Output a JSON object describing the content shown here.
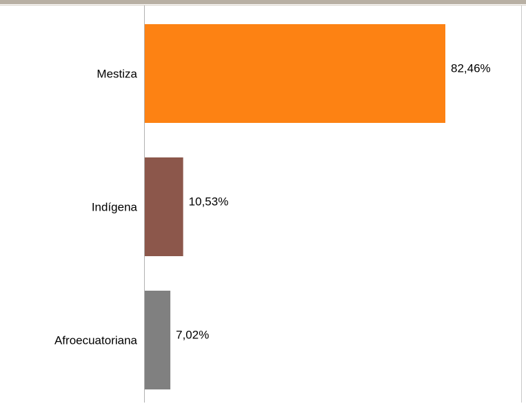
{
  "chart_data": {
    "type": "bar",
    "orientation": "horizontal",
    "title": "",
    "xlabel": "",
    "ylabel": "",
    "categories": [
      "Mestiza",
      "Indígena",
      "Afroecuatoriana"
    ],
    "values": [
      82.46,
      10.53,
      7.02
    ],
    "value_labels": [
      "82,46%",
      "10,53%",
      "7,02%"
    ],
    "colors": [
      "#fd8213",
      "#8c574b",
      "#808080"
    ],
    "xlim": [
      0,
      100
    ],
    "grid": false,
    "legend": "none"
  }
}
